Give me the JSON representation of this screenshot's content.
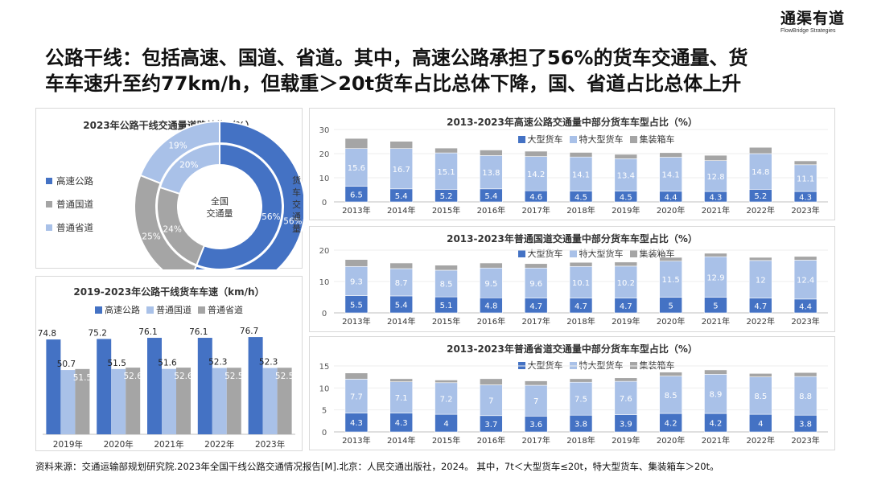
{
  "logo": {
    "cn": "通渠有道",
    "en": "FlowBridge Strategies"
  },
  "headline": {
    "line1": "公路干线：包括高速、国道、省道。其中，高速公路承担了56%的货车交通量、货",
    "line2": "车车速升至约77km/h，但载重＞20t货车占比总体下降，国、省道占比总体上升"
  },
  "colors": {
    "highway": "#4472c4",
    "national": "#a9c1e8",
    "provincial": "#a5a5a5",
    "grid": "#e0e0e0",
    "axis": "#595959"
  },
  "source": "资料来源：交通运输部规划研究院.2023年全国干线公路交通情况报告[M].北京：人民交通出版社，2024。  其中，7t＜大型货车≤20t，特大型货车、集装箱车＞20t。",
  "chart_data": [
    {
      "type": "pie",
      "title": "2023年公路干线交通量道路结构（%）",
      "center_label": [
        "全国",
        "交通量"
      ],
      "side_label": "货车交通量",
      "categories": [
        "高速公路",
        "普通国道",
        "普通省道"
      ],
      "rings": [
        {
          "values": [
            56,
            24,
            20
          ],
          "labels": [
            "56%",
            "24%",
            "20%"
          ]
        },
        {
          "values": [
            56,
            25,
            19
          ],
          "labels": [
            "56%",
            "25%",
            "19%"
          ]
        }
      ],
      "colors": [
        "#4472c4",
        "#a5a5a5",
        "#a9c1e8"
      ]
    },
    {
      "type": "bar",
      "title": "2019-2023年公路干线货车车速（km/h）",
      "categories": [
        "2019年",
        "2020年",
        "2021年",
        "2022年",
        "2023年"
      ],
      "series": [
        {
          "name": "高速公路",
          "values": [
            74.8,
            75.2,
            76.1,
            76.1,
            76.7
          ],
          "color": "#4472c4"
        },
        {
          "name": "普通国道",
          "values": [
            50.7,
            51.5,
            51.6,
            52.3,
            52.3
          ],
          "color": "#a9c1e8"
        },
        {
          "name": "普通省道",
          "values": [
            51.5,
            52.6,
            52.6,
            52.5,
            52.5
          ],
          "color": "#a5a5a5"
        }
      ],
      "ylim": [
        0,
        85
      ]
    },
    {
      "type": "bar",
      "stacked": true,
      "title": "2013-2023年高速公路交通量中部分货车车型占比（%）",
      "categories": [
        "2013年",
        "2014年",
        "2015年",
        "2016年",
        "2017年",
        "2018年",
        "2019年",
        "2020年",
        "2021年",
        "2022年",
        "2023年"
      ],
      "series": [
        {
          "name": "大型货车",
          "values": [
            6.5,
            5.4,
            5.2,
            5.4,
            4.6,
            4.5,
            4.5,
            4.4,
            4.3,
            5.2,
            4.3
          ],
          "color": "#4472c4"
        },
        {
          "name": "特大型货车",
          "values": [
            15.6,
            16.7,
            15.1,
            13.8,
            14.2,
            14.1,
            13.4,
            14.1,
            12.8,
            14.8,
            11.1
          ],
          "color": "#a9c1e8"
        },
        {
          "name": "集装箱车",
          "values": [
            4.2,
            3.0,
            2.0,
            2.3,
            2.2,
            1.9,
            1.8,
            1.9,
            2.2,
            2.6,
            1.6
          ],
          "color": "#a5a5a5"
        }
      ],
      "ylim": [
        0,
        30
      ],
      "yticks": [
        0,
        10,
        20,
        30
      ]
    },
    {
      "type": "bar",
      "stacked": true,
      "title": "2013-2023年普通国道交通量中部分货车车型占比（%）",
      "categories": [
        "2013年",
        "2014年",
        "2015年",
        "2016年",
        "2017年",
        "2018年",
        "2019年",
        "2020年",
        "2021年",
        "2022年",
        "2023年"
      ],
      "series": [
        {
          "name": "大型货车",
          "values": [
            5.5,
            5.4,
            5.1,
            4.8,
            4.7,
            4.7,
            4.7,
            5,
            5,
            4.7,
            4.4
          ],
          "color": "#4472c4"
        },
        {
          "name": "特大型货车",
          "values": [
            9.3,
            8.7,
            8.5,
            9.5,
            9.6,
            10.1,
            10.2,
            11.5,
            12.9,
            12,
            12.4
          ],
          "color": "#a9c1e8"
        },
        {
          "name": "集装箱车",
          "values": [
            2.2,
            1.8,
            1.6,
            1.6,
            1.4,
            1.3,
            1.3,
            1.2,
            1.1,
            1.0,
            1.2
          ],
          "color": "#a5a5a5"
        }
      ],
      "ylim": [
        0,
        20
      ],
      "yticks": [
        0,
        10,
        20
      ]
    },
    {
      "type": "bar",
      "stacked": true,
      "title": "2013-2023年普通省道交通量中部分货车车型占比（%）",
      "categories": [
        "2013年",
        "2014年",
        "2015年",
        "2016年",
        "2017年",
        "2018年",
        "2019年",
        "2020年",
        "2021年",
        "2022年",
        "2023年"
      ],
      "series": [
        {
          "name": "大型货车",
          "values": [
            4.3,
            4.3,
            4,
            3.7,
            3.6,
            3.8,
            3.9,
            4.2,
            4.2,
            4,
            3.8
          ],
          "color": "#4472c4"
        },
        {
          "name": "特大型货车",
          "values": [
            7.7,
            7.1,
            7.2,
            7,
            7,
            7.5,
            7.6,
            8.5,
            8.9,
            8.5,
            8.8
          ],
          "color": "#a9c1e8"
        },
        {
          "name": "集装箱车",
          "values": [
            1.4,
            0.7,
            0.6,
            1.4,
            1.0,
            0.8,
            0.8,
            0.9,
            1.0,
            0.8,
            0.9
          ],
          "color": "#a5a5a5"
        }
      ],
      "ylim": [
        0,
        15
      ],
      "yticks": [
        0,
        5,
        10,
        15
      ]
    }
  ]
}
